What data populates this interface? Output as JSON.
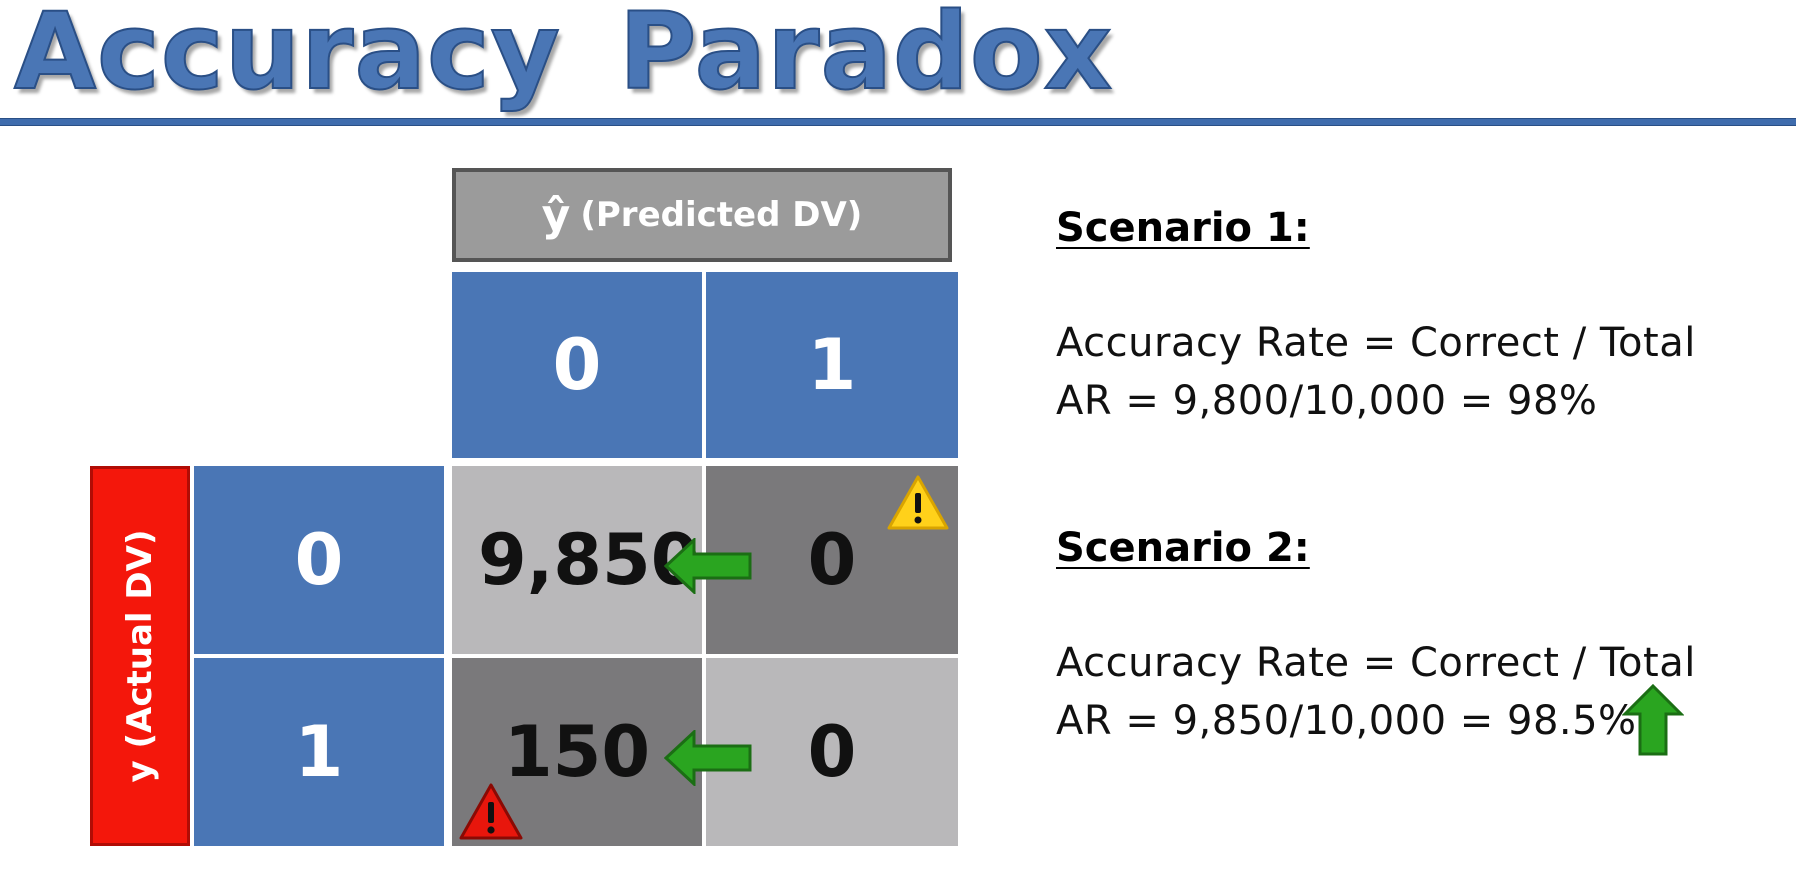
{
  "title": "Accuracy Paradox",
  "matrix": {
    "predicted_symbol": "ŷ",
    "predicted_label": "(Predicted DV)",
    "actual_label": "y (Actual DV)",
    "col_headers": [
      "0",
      "1"
    ],
    "row_headers": [
      "0",
      "1"
    ],
    "cells": {
      "r0c0": "9,850",
      "r0c1": "0",
      "r1c0": "150",
      "r1c1": "0"
    }
  },
  "scenario1": {
    "heading": "Scenario 1:",
    "line1": "Accuracy Rate = Correct / Total",
    "line2": "AR = 9,800/10,000 = 98%"
  },
  "scenario2": {
    "heading": "Scenario 2:",
    "line1": "Accuracy Rate = Correct / Total",
    "line2": "AR = 9,850/10,000 = 98.5%"
  },
  "icons": {
    "warning_yellow": "warning-icon",
    "warning_red": "alert-icon",
    "arrow_left": "arrow-left-icon",
    "arrow_up": "arrow-up-icon"
  },
  "colors": {
    "title_blue": "#4a76b5",
    "header_blue": "#4a76b5",
    "actual_red": "#f4170b",
    "arrow_green": "#2aa520",
    "warning_yellow": "#ffd11a",
    "warning_red": "#e8160c"
  }
}
